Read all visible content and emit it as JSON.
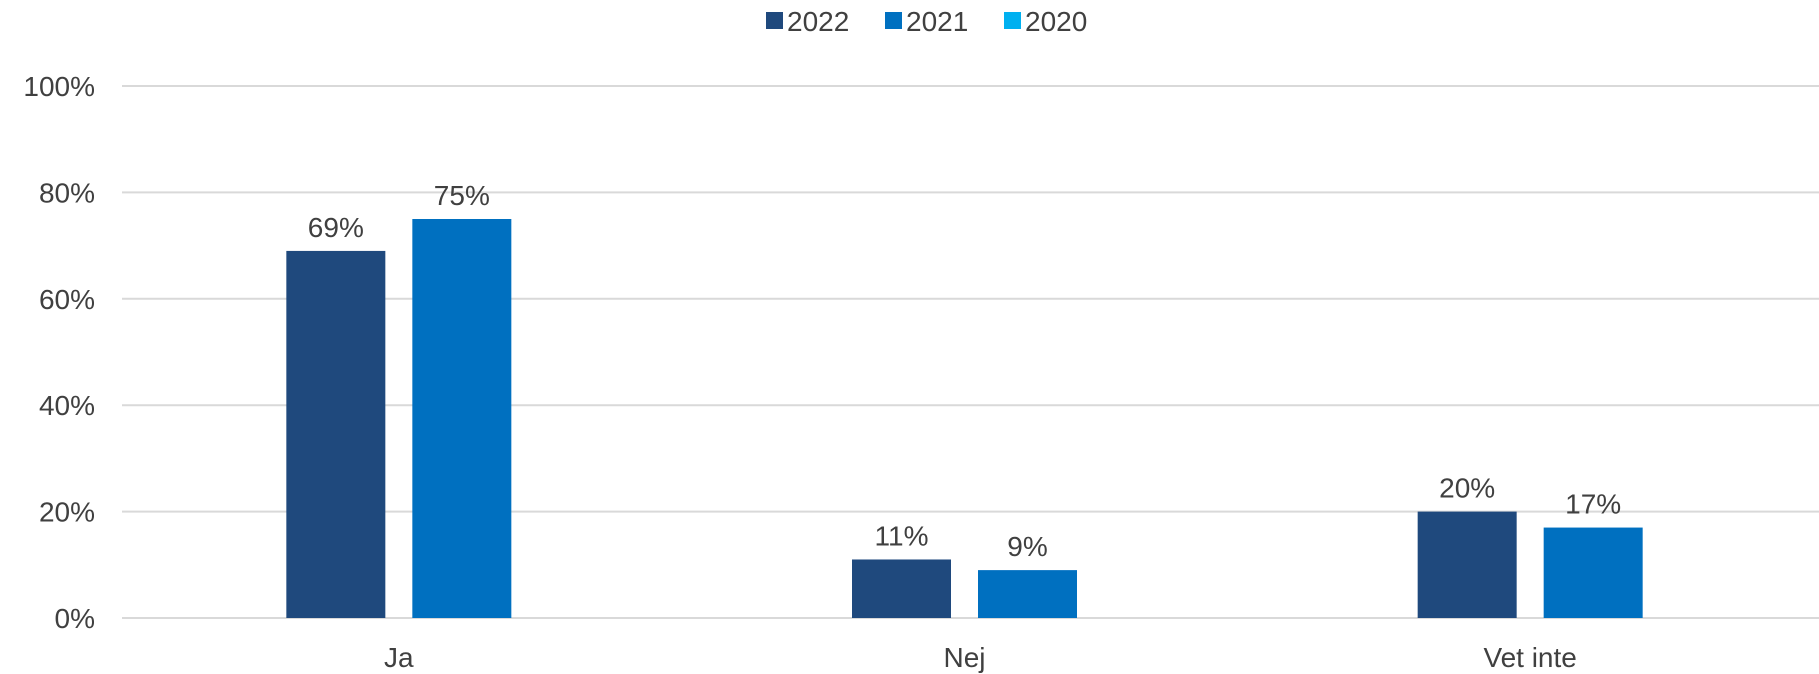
{
  "chart_data": {
    "type": "bar",
    "categories": [
      "Ja",
      "Nej",
      "Vet inte"
    ],
    "series": [
      {
        "name": "2022",
        "color": "#1f497d",
        "values": [
          69,
          11,
          20
        ],
        "labels": [
          "69%",
          "11%",
          "20%"
        ]
      },
      {
        "name": "2021",
        "color": "#0070c0",
        "values": [
          75,
          9,
          17
        ],
        "labels": [
          "75%",
          "9%",
          "17%"
        ]
      },
      {
        "name": "2020",
        "color": "#00b0f0",
        "values": [
          null,
          null,
          null
        ],
        "labels": []
      }
    ],
    "ylim": [
      0,
      100
    ],
    "yticks": [
      0,
      20,
      40,
      60,
      80,
      100
    ],
    "ytick_labels": [
      "0%",
      "20%",
      "40%",
      "60%",
      "80%",
      "100%"
    ],
    "grid": true,
    "legend_position": "top-center",
    "title": "",
    "xlabel": "",
    "ylabel": ""
  }
}
